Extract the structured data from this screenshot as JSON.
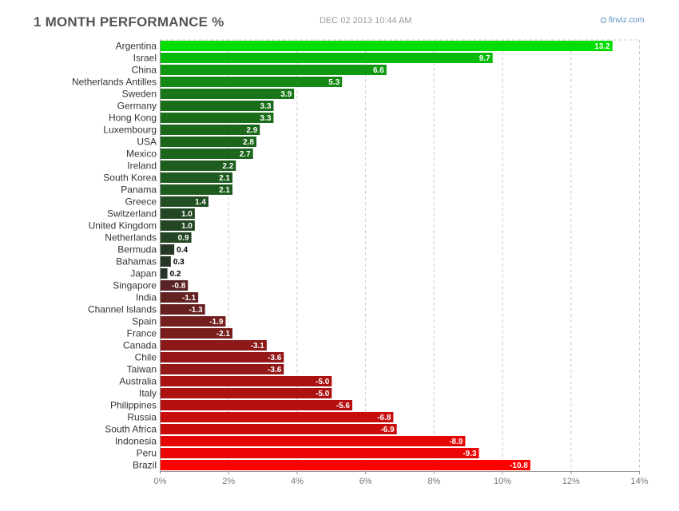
{
  "header": {
    "title": "1 MONTH PERFORMANCE %",
    "timestamp": "DEC 02 2013 10:44 AM",
    "brand": "finviz.com"
  },
  "chart_data": {
    "type": "bar",
    "orientation": "horizontal",
    "title": "1 MONTH PERFORMANCE %",
    "xlabel": "",
    "ylabel": "",
    "xlim": [
      0,
      14
    ],
    "x_ticks": [
      "0%",
      "2%",
      "4%",
      "6%",
      "8%",
      "10%",
      "12%",
      "14%"
    ],
    "grid": "vertical dashed",
    "categories": [
      "Argentina",
      "Israel",
      "China",
      "Netherlands Antilles",
      "Sweden",
      "Germany",
      "Hong Kong",
      "Luxembourg",
      "USA",
      "Mexico",
      "Ireland",
      "South Korea",
      "Panama",
      "Greece",
      "Switzerland",
      "United Kingdom",
      "Netherlands",
      "Bermuda",
      "Bahamas",
      "Japan",
      "Singapore",
      "India",
      "Channel Islands",
      "Spain",
      "France",
      "Canada",
      "Chile",
      "Taiwan",
      "Australia",
      "Italy",
      "Philippines",
      "Russia",
      "South Africa",
      "Indonesia",
      "Peru",
      "Brazil"
    ],
    "values": [
      13.2,
      9.7,
      6.6,
      5.3,
      3.9,
      3.3,
      3.3,
      2.9,
      2.8,
      2.7,
      2.2,
      2.1,
      2.1,
      1.4,
      1.0,
      1.0,
      0.9,
      0.4,
      0.3,
      0.2,
      -0.8,
      -1.1,
      -1.3,
      -1.9,
      -2.1,
      -3.1,
      -3.6,
      -3.6,
      -5.0,
      -5.0,
      -5.6,
      -6.8,
      -6.9,
      -8.9,
      -9.3,
      -10.8
    ],
    "value_labels": [
      "13.2",
      "9.7",
      "6.6",
      "5.3",
      "3.9",
      "3.3",
      "3.3",
      "2.9",
      "2.8",
      "2.7",
      "2.2",
      "2.1",
      "2.1",
      "1.4",
      "1.0",
      "1.0",
      "0.9",
      "0.4",
      "0.3",
      "0.2",
      "-0.8",
      "-1.1",
      "-1.3",
      "-1.9",
      "-2.1",
      "-3.1",
      "-3.6",
      "-3.6",
      "-5.0",
      "-5.0",
      "-5.6",
      "-6.8",
      "-6.9",
      "-8.9",
      "-9.3",
      "-10.8"
    ],
    "bar_length": "absolute value",
    "colors": {
      "positive_strong": "#00dd00",
      "positive_weak": "#2a2a2a",
      "negative_weak": "#3a2a2a",
      "negative_strong": "#ff0000",
      "grid": "#cccccc",
      "axis": "#999999"
    }
  }
}
